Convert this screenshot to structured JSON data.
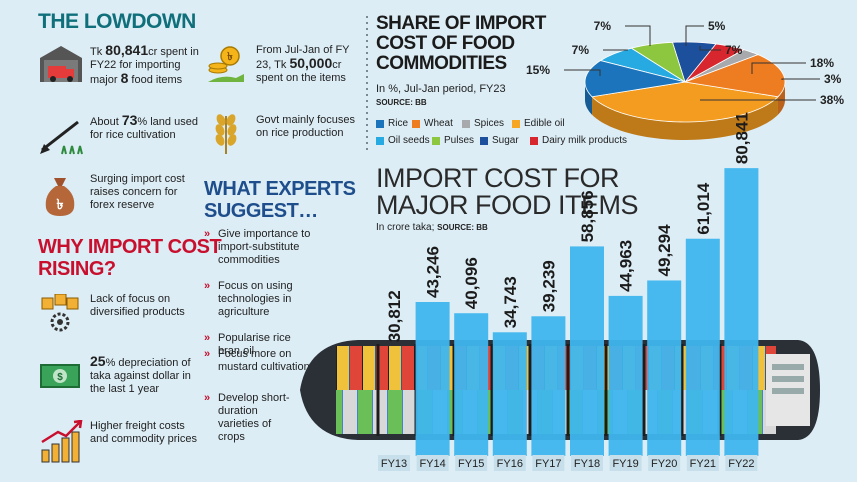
{
  "lowdown": {
    "title": "THE LOWDOWN",
    "items": [
      {
        "pre": "Tk ",
        "strong": "80,841",
        "post": "cr spent in FY22 for importing major ",
        "strong2": "8",
        "post2": " food items",
        "icon": "truck-warehouse-icon"
      },
      {
        "pre": "From Jul-Jan of FY 23, Tk ",
        "strong": "50,000",
        "post": "cr spent on the items",
        "icon": "coins-hand-icon"
      },
      {
        "pre": "About ",
        "strong": "73",
        "post": "% land used for rice cultivation",
        "icon": "plough-icon"
      },
      {
        "pre": "Govt mainly focuses on rice production",
        "icon": "rice-plant-icon"
      },
      {
        "pre": "Surging import cost raises concern for forex reserve",
        "icon": "money-bag-icon"
      }
    ]
  },
  "why": {
    "title_line1": "WHY IMPORT COST",
    "title_line2": "RISING?",
    "items": [
      {
        "text": "Lack of focus on diversified products",
        "icon": "boxes-gear-icon"
      },
      {
        "strong": "25",
        "text": "% depreciation of taka against dollar in the last 1 year",
        "icon": "banknote-icon"
      },
      {
        "text": "Higher freight costs and commodity prices",
        "icon": "rising-bars-icon"
      }
    ]
  },
  "experts": {
    "title_line1": "WHAT EXPERTS",
    "title_line2": "SUGGEST…",
    "items": [
      "Give importance to import-substitute commodities",
      "Focus on using technologies in agriculture",
      "Popularise rice bran oil",
      "Focus more on mustard cultivation",
      "Develop short-duration varieties of crops"
    ]
  },
  "share": {
    "title_line1": "SHARE OF IMPORT",
    "title_line2": "COST OF FOOD",
    "title_line3": "COMMODITIES",
    "subtitle": "In %, Jul-Jan period, FY23",
    "source": "SOURCE: BB"
  },
  "bars": {
    "title_line1": "IMPORT COST FOR",
    "title_line2": "MAJOR FOOD ITEMS",
    "subtitle": "In crore taka;",
    "source": "SOURCE: BB"
  },
  "chart_data": [
    {
      "type": "pie",
      "title": "SHARE OF IMPORT COST OF FOOD COMMODITIES",
      "subtitle": "In %, Jul-Jan period, FY23",
      "slices": [
        {
          "name": "Rice",
          "value": 5,
          "label": "5%",
          "color": "#d7262e"
        },
        {
          "name": "Wheat",
          "value": 18,
          "label": "18%",
          "color": "#ee7d22"
        },
        {
          "name": "Spices",
          "value": 3,
          "label": "3%",
          "color": "#a7a9ac"
        },
        {
          "name": "Edible oil",
          "value": 38,
          "label": "38%",
          "color": "#f6a623"
        },
        {
          "name": "Oil seeds",
          "value": 15,
          "label": "15%",
          "color": "#27a9e1"
        },
        {
          "name": "Pulses",
          "value": 7,
          "label": "7%",
          "color": "#8dc63f"
        },
        {
          "name": "Sugar",
          "value": 7,
          "label": "7%",
          "color": "#1c75bc"
        },
        {
          "name": "Dairy milk products",
          "value": 7,
          "label": "7%",
          "color": "#e0245e"
        }
      ],
      "legend": [
        {
          "name": "Rice",
          "color": "#1c75bc"
        },
        {
          "name": "Wheat",
          "color": "#ee7d22"
        },
        {
          "name": "Spices",
          "color": "#a7a9ac"
        },
        {
          "name": "Edible oil",
          "color": "#f6a623"
        },
        {
          "name": "Oil seeds",
          "color": "#27a9e1"
        },
        {
          "name": "Pulses",
          "color": "#8dc63f"
        },
        {
          "name": "Sugar",
          "color": "#1c4f9c"
        },
        {
          "name": "Dairy milk products",
          "color": "#d7262e"
        }
      ]
    },
    {
      "type": "bar",
      "title": "IMPORT COST FOR MAJOR FOOD ITEMS",
      "ylabel": "In crore taka",
      "categories": [
        "FY13",
        "FY14",
        "FY15",
        "FY16",
        "FY17",
        "FY18",
        "FY19",
        "FY20",
        "FY21",
        "FY22"
      ],
      "values": [
        30812,
        43246,
        40096,
        34743,
        39239,
        58856,
        44963,
        49294,
        61014,
        80841
      ],
      "labels": [
        "30,812",
        "43,246",
        "40,096",
        "34,743",
        "39,239",
        "58,856",
        "44,963",
        "49,294",
        "61,014",
        "80,841"
      ],
      "bar_color": "#3fb6ee"
    }
  ]
}
